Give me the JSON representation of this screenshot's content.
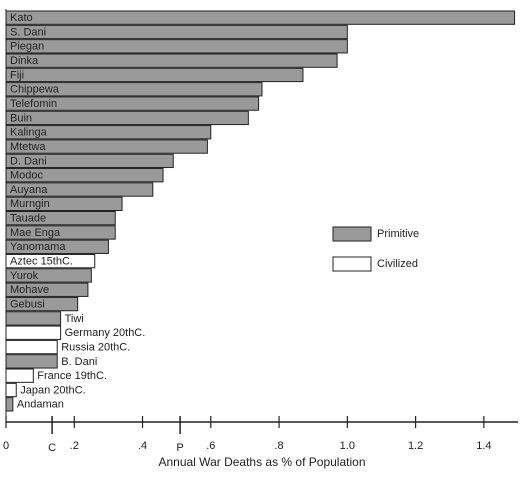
{
  "chart_data": {
    "type": "bar",
    "orientation": "horizontal",
    "xlabel": "Annual War Deaths as % of Population",
    "categories": [
      "Kato",
      "S. Dani",
      "Piegan",
      "Dinka",
      "Fiji",
      "Chippewa",
      "Telefomin",
      "Buin",
      "Kalinga",
      "Mtetwa",
      "D. Dani",
      "Modoc",
      "Auyana",
      "Murngin",
      "Tauade",
      "Mae Enga",
      "Yanomama",
      "Aztec 15thC.",
      "Yurok",
      "Mohave",
      "Gebusi",
      "Tiwi",
      "Germany 20thC.",
      "Russia 20thC.",
      "B. Dani",
      "France 19thC.",
      "Japan 20thC.",
      "Andaman"
    ],
    "series": [
      {
        "name": "Primitive",
        "color": "#9a9a9a",
        "values": [
          1.49,
          1.0,
          1.0,
          0.97,
          0.87,
          0.75,
          0.74,
          0.71,
          0.6,
          0.59,
          0.49,
          0.46,
          0.43,
          0.34,
          0.32,
          0.32,
          0.3,
          null,
          0.25,
          0.24,
          0.21,
          0.16,
          null,
          null,
          0.15,
          null,
          null,
          0.02
        ]
      },
      {
        "name": "Civilized",
        "color": "#ffffff",
        "values": [
          null,
          null,
          null,
          null,
          null,
          null,
          null,
          null,
          null,
          null,
          null,
          null,
          null,
          null,
          null,
          null,
          null,
          0.26,
          null,
          null,
          null,
          null,
          0.16,
          0.15,
          null,
          0.08,
          0.03,
          null
        ]
      }
    ],
    "xlim": [
      0,
      1.5
    ],
    "xticks": [
      0,
      {
        "value": 0.2,
        "label": ".2"
      },
      {
        "value": 0.4,
        "label": ".4"
      },
      {
        "value": 0.6,
        "label": ".6"
      },
      {
        "value": 0.8,
        "label": ".8"
      },
      {
        "value": 1,
        "label": "1.0"
      },
      {
        "value": 1.2,
        "label": "1.2"
      },
      {
        "value": 1.4,
        "label": "1.4"
      }
    ],
    "annotations": [
      {
        "text": "C",
        "x": 0.135
      },
      {
        "text": "P",
        "x": 0.51
      }
    ],
    "legend": "right"
  }
}
